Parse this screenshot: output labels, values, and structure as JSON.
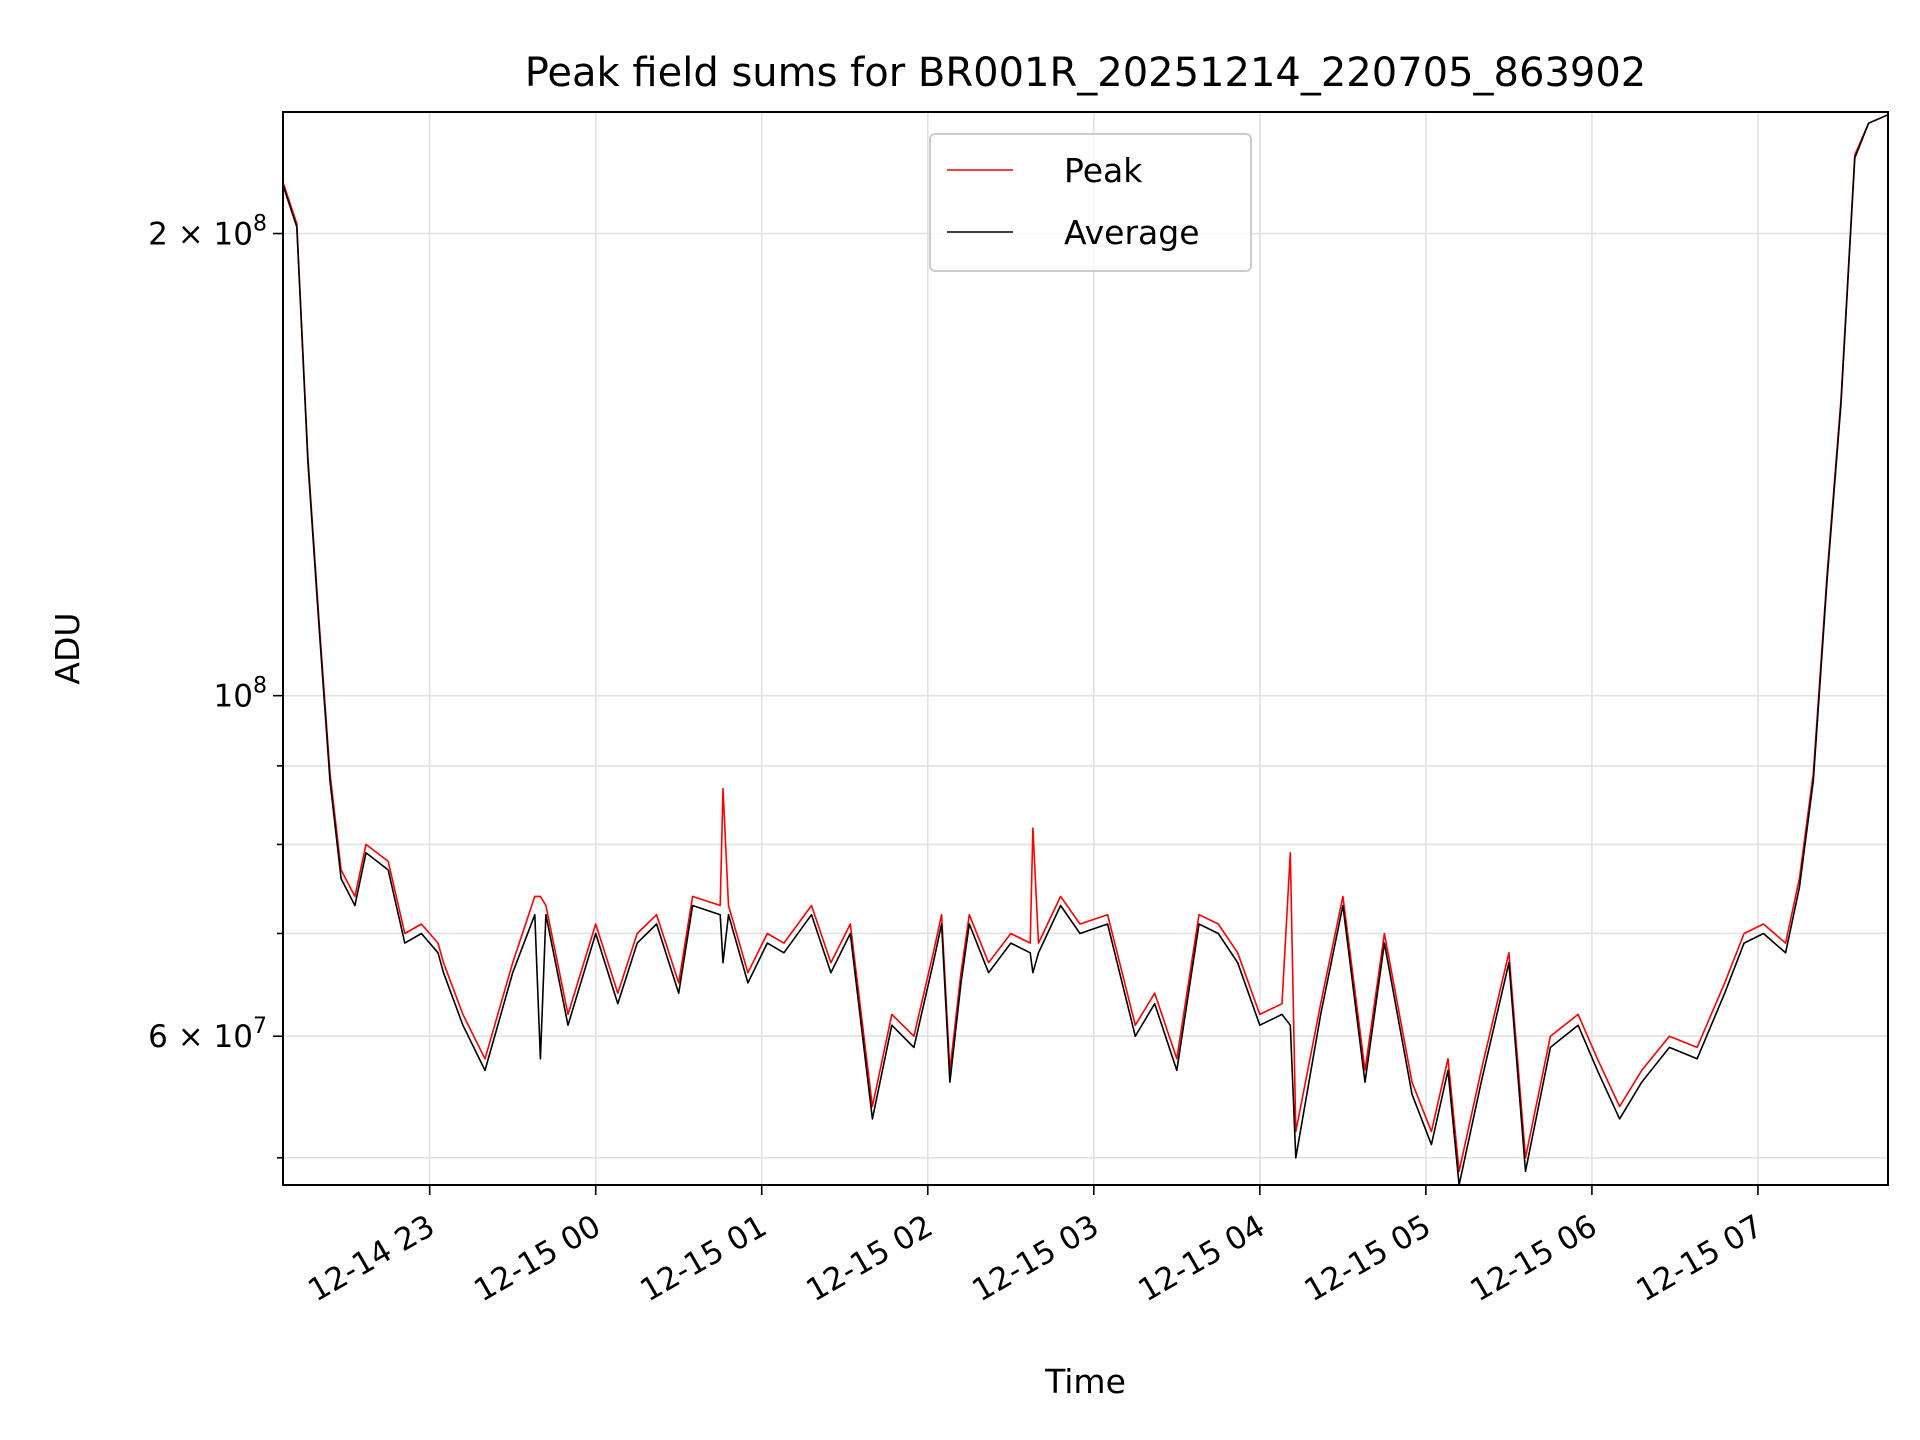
{
  "chart_data": {
    "type": "line",
    "title": "Peak field sums for BR001R_20251214_220705_863902",
    "xlabel": "Time",
    "ylabel": "ADU",
    "yscale": "log",
    "grid": true,
    "legend_position": "upper center",
    "xlim": [
      "2025-12-14 22:07",
      "2025-12-15 07:47"
    ],
    "ylim": [
      48000000,
      240000000
    ],
    "x_ticks": [
      "12-14 23",
      "12-15 00",
      "12-15 01",
      "12-15 02",
      "12-15 03",
      "12-15 04",
      "12-15 05",
      "12-15 06",
      "12-15 07"
    ],
    "y_ticks": [
      {
        "value": 60000000,
        "mantissa": "6",
        "exponent": "7"
      },
      {
        "value": 100000000,
        "mantissa": "",
        "exponent": "8"
      },
      {
        "value": 200000000,
        "mantissa": "2",
        "exponent": "8"
      }
    ],
    "y_minor_ticks": [
      50000000,
      70000000,
      80000000,
      90000000
    ],
    "series": [
      {
        "name": "Peak",
        "color": "#ff0000",
        "x": [
          "2025-12-14 22:07",
          "2025-12-14 22:12",
          "2025-12-14 22:16",
          "2025-12-14 22:20",
          "2025-12-14 22:24",
          "2025-12-14 22:28",
          "2025-12-14 22:33",
          "2025-12-14 22:37",
          "2025-12-14 22:45",
          "2025-12-14 22:51",
          "2025-12-14 22:57",
          "2025-12-14 23:03",
          "2025-12-14 23:05",
          "2025-12-14 23:12",
          "2025-12-14 23:20",
          "2025-12-14 23:30",
          "2025-12-14 23:38",
          "2025-12-14 23:40",
          "2025-12-14 23:42",
          "2025-12-14 23:50",
          "2025-12-15 00:00",
          "2025-12-15 00:08",
          "2025-12-15 00:15",
          "2025-12-15 00:22",
          "2025-12-15 00:30",
          "2025-12-15 00:35",
          "2025-12-15 00:45",
          "2025-12-15 00:46",
          "2025-12-15 00:48",
          "2025-12-15 00:55",
          "2025-12-15 01:02",
          "2025-12-15 01:08",
          "2025-12-15 01:18",
          "2025-12-15 01:25",
          "2025-12-15 01:32",
          "2025-12-15 01:40",
          "2025-12-15 01:47",
          "2025-12-15 01:55",
          "2025-12-15 02:02",
          "2025-12-15 02:05",
          "2025-12-15 02:08",
          "2025-12-15 02:12",
          "2025-12-15 02:15",
          "2025-12-15 02:22",
          "2025-12-15 02:30",
          "2025-12-15 02:37",
          "2025-12-15 02:38",
          "2025-12-15 02:40",
          "2025-12-15 02:48",
          "2025-12-15 02:55",
          "2025-12-15 03:05",
          "2025-12-15 03:15",
          "2025-12-15 03:22",
          "2025-12-15 03:30",
          "2025-12-15 03:38",
          "2025-12-15 03:45",
          "2025-12-15 03:52",
          "2025-12-15 04:00",
          "2025-12-15 04:08",
          "2025-12-15 04:11",
          "2025-12-15 04:13",
          "2025-12-15 04:22",
          "2025-12-15 04:30",
          "2025-12-15 04:38",
          "2025-12-15 04:45",
          "2025-12-15 04:55",
          "2025-12-15 05:02",
          "2025-12-15 05:08",
          "2025-12-15 05:12",
          "2025-12-15 05:20",
          "2025-12-15 05:30",
          "2025-12-15 05:36",
          "2025-12-15 05:45",
          "2025-12-15 05:55",
          "2025-12-15 06:02",
          "2025-12-15 06:10",
          "2025-12-15 06:18",
          "2025-12-15 06:28",
          "2025-12-15 06:38",
          "2025-12-15 06:48",
          "2025-12-15 06:55",
          "2025-12-15 07:02",
          "2025-12-15 07:10",
          "2025-12-15 07:15",
          "2025-12-15 07:20",
          "2025-12-15 07:25",
          "2025-12-15 07:30",
          "2025-12-15 07:35",
          "2025-12-15 07:40",
          "2025-12-15 07:47"
        ],
        "y": [
          216000000,
          203000000,
          143000000,
          112000000,
          89000000,
          77000000,
          74000000,
          80000000,
          78000000,
          70000000,
          71000000,
          69000000,
          67000000,
          62000000,
          58000000,
          67000000,
          74000000,
          74000000,
          73000000,
          62000000,
          71000000,
          64000000,
          70000000,
          72000000,
          65000000,
          74000000,
          73000000,
          87000000,
          73000000,
          66000000,
          70000000,
          69000000,
          73000000,
          67000000,
          71000000,
          54000000,
          62000000,
          60000000,
          68000000,
          72000000,
          57000000,
          66000000,
          72000000,
          67000000,
          70000000,
          69000000,
          82000000,
          69000000,
          74000000,
          71000000,
          72000000,
          61000000,
          64000000,
          58000000,
          72000000,
          71000000,
          68000000,
          62000000,
          63000000,
          79000000,
          52000000,
          63000000,
          74000000,
          57000000,
          70000000,
          56000000,
          52000000,
          58000000,
          49000000,
          57000000,
          68000000,
          50000000,
          60000000,
          62000000,
          58000000,
          54000000,
          57000000,
          60000000,
          59000000,
          65000000,
          70000000,
          71000000,
          69000000,
          76000000,
          89000000,
          120000000,
          156000000,
          225000000,
          236000000,
          239000000
        ]
      },
      {
        "name": "Average",
        "color": "#000000",
        "x": [
          "2025-12-14 22:07",
          "2025-12-14 22:12",
          "2025-12-14 22:16",
          "2025-12-14 22:20",
          "2025-12-14 22:24",
          "2025-12-14 22:28",
          "2025-12-14 22:33",
          "2025-12-14 22:37",
          "2025-12-14 22:45",
          "2025-12-14 22:51",
          "2025-12-14 22:57",
          "2025-12-14 23:03",
          "2025-12-14 23:05",
          "2025-12-14 23:12",
          "2025-12-14 23:20",
          "2025-12-14 23:30",
          "2025-12-14 23:38",
          "2025-12-14 23:40",
          "2025-12-14 23:42",
          "2025-12-14 23:50",
          "2025-12-15 00:00",
          "2025-12-15 00:08",
          "2025-12-15 00:15",
          "2025-12-15 00:22",
          "2025-12-15 00:30",
          "2025-12-15 00:35",
          "2025-12-15 00:45",
          "2025-12-15 00:46",
          "2025-12-15 00:48",
          "2025-12-15 00:55",
          "2025-12-15 01:02",
          "2025-12-15 01:08",
          "2025-12-15 01:18",
          "2025-12-15 01:25",
          "2025-12-15 01:32",
          "2025-12-15 01:40",
          "2025-12-15 01:47",
          "2025-12-15 01:55",
          "2025-12-15 02:02",
          "2025-12-15 02:05",
          "2025-12-15 02:08",
          "2025-12-15 02:12",
          "2025-12-15 02:15",
          "2025-12-15 02:22",
          "2025-12-15 02:30",
          "2025-12-15 02:37",
          "2025-12-15 02:38",
          "2025-12-15 02:40",
          "2025-12-15 02:48",
          "2025-12-15 02:55",
          "2025-12-15 03:05",
          "2025-12-15 03:15",
          "2025-12-15 03:22",
          "2025-12-15 03:30",
          "2025-12-15 03:38",
          "2025-12-15 03:45",
          "2025-12-15 03:52",
          "2025-12-15 04:00",
          "2025-12-15 04:08",
          "2025-12-15 04:11",
          "2025-12-15 04:13",
          "2025-12-15 04:22",
          "2025-12-15 04:30",
          "2025-12-15 04:38",
          "2025-12-15 04:45",
          "2025-12-15 04:55",
          "2025-12-15 05:02",
          "2025-12-15 05:08",
          "2025-12-15 05:12",
          "2025-12-15 05:20",
          "2025-12-15 05:30",
          "2025-12-15 05:36",
          "2025-12-15 05:45",
          "2025-12-15 05:55",
          "2025-12-15 06:02",
          "2025-12-15 06:10",
          "2025-12-15 06:18",
          "2025-12-15 06:28",
          "2025-12-15 06:38",
          "2025-12-15 06:48",
          "2025-12-15 06:55",
          "2025-12-15 07:02",
          "2025-12-15 07:10",
          "2025-12-15 07:15",
          "2025-12-15 07:20",
          "2025-12-15 07:25",
          "2025-12-15 07:30",
          "2025-12-15 07:35",
          "2025-12-15 07:40",
          "2025-12-15 07:47"
        ],
        "y": [
          215000000,
          202000000,
          142000000,
          111000000,
          88000000,
          76000000,
          73000000,
          79000000,
          77000000,
          69000000,
          70000000,
          68000000,
          66000000,
          61000000,
          57000000,
          66000000,
          72000000,
          58000000,
          72000000,
          61000000,
          70000000,
          63000000,
          69000000,
          71000000,
          64000000,
          73000000,
          72000000,
          67000000,
          72000000,
          65000000,
          69000000,
          68000000,
          72000000,
          66000000,
          70000000,
          53000000,
          61000000,
          59000000,
          67000000,
          71000000,
          56000000,
          65000000,
          71000000,
          66000000,
          69000000,
          68000000,
          66000000,
          68000000,
          73000000,
          70000000,
          71000000,
          60000000,
          63000000,
          57000000,
          71000000,
          70000000,
          67000000,
          61000000,
          62000000,
          61000000,
          50000000,
          62000000,
          73000000,
          56000000,
          69000000,
          55000000,
          51000000,
          57000000,
          48000000,
          56000000,
          67000000,
          49000000,
          59000000,
          61000000,
          57000000,
          53000000,
          56000000,
          59000000,
          58000000,
          64000000,
          69000000,
          70000000,
          68000000,
          75000000,
          88000000,
          119000000,
          155000000,
          224000000,
          236000000,
          239000000
        ]
      }
    ]
  }
}
